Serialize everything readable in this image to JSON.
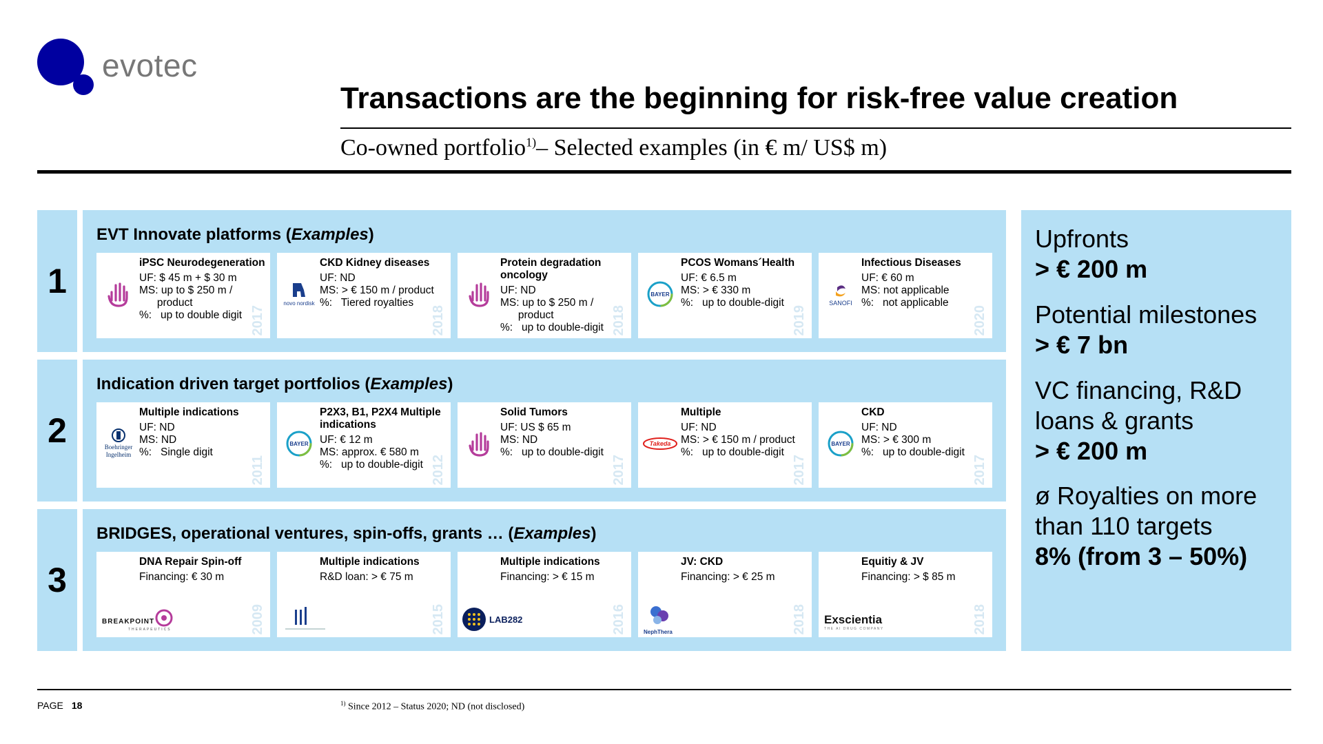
{
  "logo": {
    "text": "evotec"
  },
  "title": "Transactions are the beginning for risk-free value creation",
  "subtitle": {
    "main": "Co-owned portfolio",
    "sup": "1)",
    "rest": "– Selected examples (in  € m/ US$ m)"
  },
  "rows": [
    {
      "number": "1",
      "title": "EVT Innovate platforms (",
      "title_em": "Examples",
      "title_end": ")",
      "cards": [
        {
          "title": "iPSC Neurodegeneration",
          "lines": [
            "UF: $ 45 m + $ 30 m",
            "MS: up to $ 250 m /",
            "      product",
            "%:   up to double digit"
          ],
          "year": "2017",
          "logo": "hand-icon"
        },
        {
          "title": "CKD Kidney diseases",
          "lines": [
            "UF: ND",
            "MS: > € 150 m / product",
            "%:   Tiered royalties"
          ],
          "year": "2018",
          "logo": "novo-nordisk-logo",
          "logo_text": "novo nordisk"
        },
        {
          "title": "Protein degradation oncology",
          "lines": [
            "UF: ND",
            "MS: up to $ 250 m /",
            "      product",
            "%:   up to double-digit"
          ],
          "year": "2018",
          "logo": "hand-icon"
        },
        {
          "title": "PCOS Womans´Health",
          "lines": [
            "UF: € 6.5 m",
            "MS: > € 330 m",
            "%:   up to double-digit"
          ],
          "year": "2019",
          "logo": "bayer-logo",
          "logo_text": "BAYER"
        },
        {
          "title": "Infectious Diseases",
          "lines": [
            "UF: € 60 m",
            "MS: not applicable",
            "%:   not applicable"
          ],
          "year": "2020",
          "logo": "sanofi-logo",
          "logo_text": "SANOFI"
        }
      ]
    },
    {
      "number": "2",
      "title": "Indication driven target portfolios (",
      "title_em": "Examples",
      "title_end": ")",
      "cards": [
        {
          "title": "Multiple indications",
          "lines": [
            "UF: ND",
            "MS: ND",
            "%:   Single digit"
          ],
          "year": "2011",
          "logo": "boehringer-logo",
          "logo_text": "Boehringer Ingelheim"
        },
        {
          "title": "P2X3, B1, P2X4 Multiple indications",
          "lines": [
            "UF: € 12 m",
            "MS: approx. € 580 m",
            "%:   up to double-digit"
          ],
          "year": "2012",
          "logo": "bayer-logo",
          "logo_text": "BAYER"
        },
        {
          "title": "Solid Tumors",
          "lines": [
            "UF: US $ 65 m",
            "MS: ND",
            "%:   up to double-digit"
          ],
          "year": "2017",
          "logo": "hand-icon"
        },
        {
          "title": "Multiple",
          "lines": [
            "UF: ND",
            "MS: > € 150 m / product",
            "%:   up to double-digit"
          ],
          "year": "2017",
          "logo": "takeda-logo",
          "logo_text": "Takeda"
        },
        {
          "title": "CKD",
          "lines": [
            "UF: ND",
            "MS: > € 300 m",
            "%:   up to double-digit"
          ],
          "year": "2017",
          "logo": "bayer-logo",
          "logo_text": "BAYER"
        }
      ]
    },
    {
      "number": "3",
      "title": "BRIDGES, operational ventures, spin-offs, grants … (",
      "title_em": "Examples",
      "title_end": ")",
      "cards": [
        {
          "title": "DNA Repair Spin-off",
          "lines": [
            "Financing: € 30 m"
          ],
          "year": "2009",
          "logo": "breakpoint-logo",
          "logo_text": "BREAKPOINT"
        },
        {
          "title": "Multiple indications",
          "lines": [
            "R&D loan: > € 75 m"
          ],
          "year": "2015",
          "logo": "bars-logo"
        },
        {
          "title": "Multiple indications",
          "lines": [
            "Financing: > € 15 m"
          ],
          "year": "2016",
          "logo": "lab282-logo",
          "logo_text": "LAB282"
        },
        {
          "title": "JV: CKD",
          "lines": [
            "Financing: > € 25 m"
          ],
          "year": "2018",
          "logo": "nephthera-logo",
          "logo_text": "NephThera"
        },
        {
          "title": "Equitiy & JV",
          "lines": [
            "Financing: > $ 85 m"
          ],
          "year": "2018",
          "logo": "exscientia-logo",
          "logo_text": "Exscientia"
        }
      ]
    }
  ],
  "side": {
    "upfronts_label": "Upfronts",
    "upfronts_value": "> € 200 m",
    "milestones_label": "Potential milestones",
    "milestones_value": "> € 7 bn",
    "vc_label": "VC financing, R&D loans & grants",
    "vc_value": "> € 200 m",
    "royalties_label": "ø Royalties on more than 110 targets",
    "royalties_value": "8% (from 3 – 50%)"
  },
  "footer": {
    "page_label": "PAGE",
    "page_number": "18",
    "footnote_sup": "1)",
    "footnote": " Since 2012 – Status 2020; ND (not disclosed)"
  },
  "colors": {
    "panel": "#b6e0f5",
    "brand": "#0000a0"
  }
}
